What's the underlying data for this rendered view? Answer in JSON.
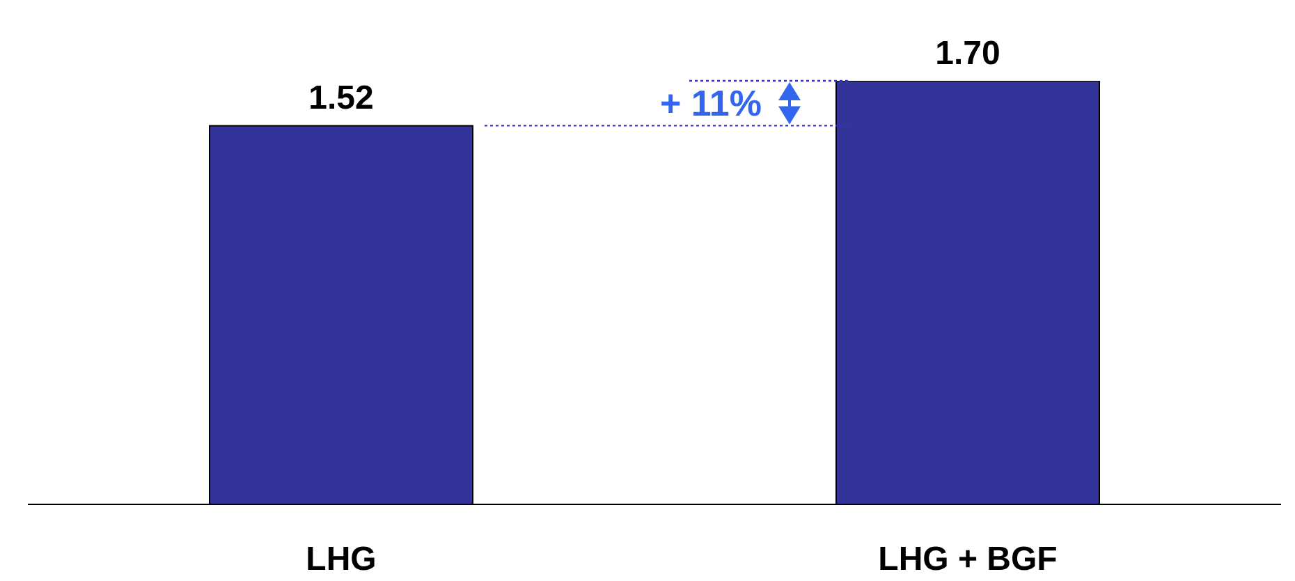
{
  "chart_data": {
    "type": "bar",
    "categories": [
      "LHG",
      "LHG + BGF"
    ],
    "values": [
      1.52,
      1.7
    ],
    "color": "#333399",
    "value_labels": [
      "1.52",
      "1.70"
    ],
    "tick_labels": "x",
    "annotations": [
      "+ 11%"
    ]
  }
}
